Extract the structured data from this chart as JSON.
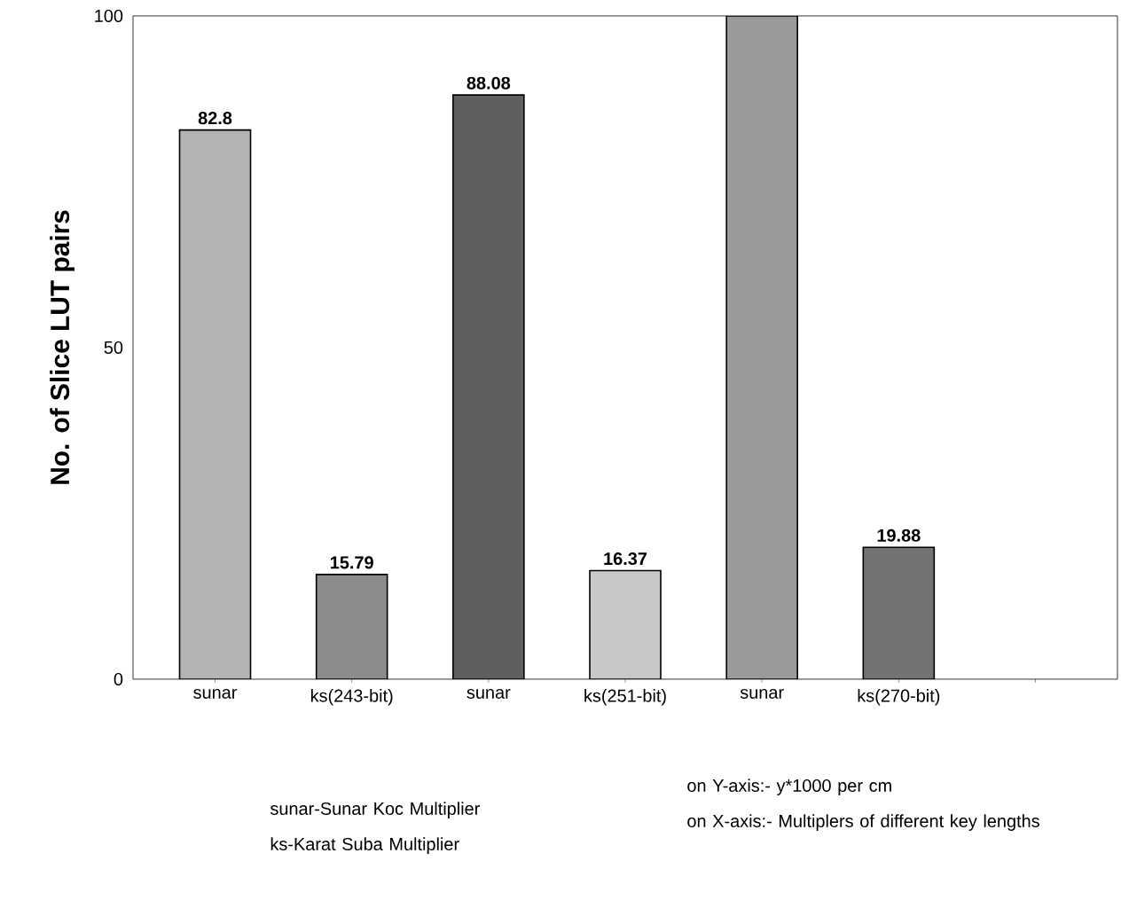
{
  "chart_data": {
    "type": "bar",
    "ylabel": "No. of Slice LUT pairs",
    "categories": [
      "sunar",
      "ks(243-bit)",
      "sunar",
      "ks(251-bit)",
      "sunar",
      "ks(270-bit)",
      null
    ],
    "values": [
      82.8,
      15.79,
      88.08,
      16.37,
      100,
      19.88,
      null
    ],
    "value_labels": [
      "82.8",
      "15.79",
      "88.08",
      "16.37",
      null,
      "19.88",
      null
    ],
    "colors": [
      "#b3b3b3",
      "#8c8c8c",
      "#5f5f5f",
      "#c8c8c8",
      "#9a9a9a",
      "#737373",
      "#808080"
    ],
    "ylim": [
      0,
      100
    ],
    "yticks": [
      0,
      50,
      100
    ],
    "annotations": [
      "sunar-Sunar Koc Multiplier",
      "ks-Karat Suba Multiplier",
      "on Y-axis:- y*1000 per cm",
      "on X-axis:- Multiplers of different key lengths"
    ]
  }
}
